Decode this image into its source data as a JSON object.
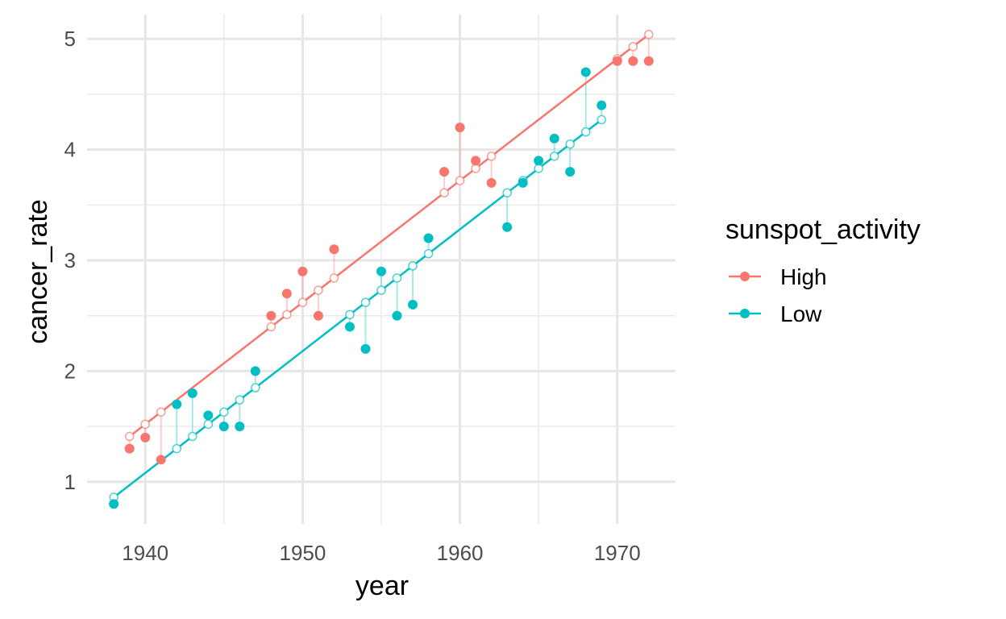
{
  "chart_data": {
    "type": "scatter",
    "title": "",
    "xlabel": "year",
    "ylabel": "cancer_rate",
    "xlim": [
      1936.3,
      1973.7
    ],
    "ylim": [
      0.62,
      5.22
    ],
    "xticks": [
      "1940",
      "1950",
      "1960",
      "1970"
    ],
    "yticks": [
      "1",
      "2",
      "3",
      "4",
      "5"
    ],
    "grid": true,
    "legend": {
      "title": "sunspot_activity",
      "placement": "right"
    },
    "series": [
      {
        "name": "High",
        "color": "#F8766D",
        "fit": {
          "intercept_at_1939": 1.41,
          "slope": 0.1094
        },
        "x": [
          1939,
          1940,
          1941,
          1948,
          1949,
          1950,
          1951,
          1952,
          1959,
          1960,
          1961,
          1962,
          1970,
          1971,
          1972
        ],
        "y": [
          1.3,
          1.4,
          1.2,
          2.5,
          2.7,
          2.9,
          2.5,
          3.1,
          3.8,
          4.2,
          3.9,
          3.7,
          4.8,
          4.8,
          4.8
        ],
        "fitted": [
          1.41,
          1.52,
          1.63,
          2.4,
          2.51,
          2.62,
          2.73,
          2.84,
          3.61,
          3.72,
          3.83,
          3.94,
          4.82,
          4.93,
          5.04
        ]
      },
      {
        "name": "Low",
        "color": "#00BFC4",
        "fit": {
          "intercept_at_1938": 0.86,
          "slope": 0.1093
        },
        "x": [
          1938,
          1942,
          1943,
          1944,
          1945,
          1946,
          1947,
          1953,
          1954,
          1955,
          1956,
          1957,
          1958,
          1963,
          1964,
          1965,
          1966,
          1967,
          1968,
          1969
        ],
        "y": [
          0.8,
          1.7,
          1.8,
          1.6,
          1.5,
          1.5,
          2.0,
          2.4,
          2.2,
          2.9,
          2.5,
          2.6,
          3.2,
          3.3,
          3.7,
          3.9,
          4.1,
          3.8,
          4.7,
          4.4
        ],
        "fitted": [
          0.86,
          1.3,
          1.41,
          1.52,
          1.63,
          1.74,
          1.85,
          2.51,
          2.62,
          2.73,
          2.84,
          2.95,
          3.06,
          3.61,
          3.72,
          3.83,
          3.94,
          4.05,
          4.16,
          4.27
        ]
      }
    ]
  }
}
